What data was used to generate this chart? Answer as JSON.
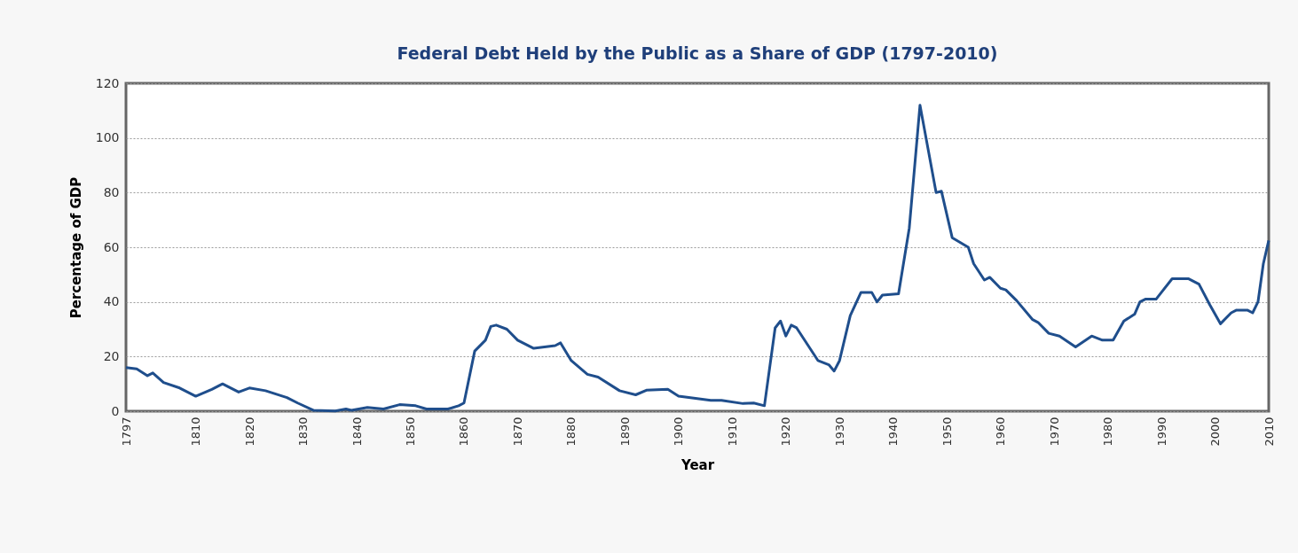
{
  "chart_data": {
    "type": "line",
    "title": "Federal Debt Held by the Public as a Share of GDP (1797-2010)",
    "xlabel": "Year",
    "ylabel": "Percentage of GDP",
    "xlim": [
      1797,
      2010
    ],
    "xticks": [
      1797,
      1810,
      1820,
      1830,
      1840,
      1850,
      1860,
      1870,
      1880,
      1890,
      1900,
      1910,
      1920,
      1930,
      1940,
      1950,
      1960,
      1970,
      1980,
      1990,
      2000,
      2010
    ],
    "ylim": [
      0,
      120
    ],
    "yticks": [
      0,
      20,
      40,
      60,
      80,
      100,
      120
    ],
    "grid": "y",
    "legend": false,
    "marker": "none",
    "line_style": "solid",
    "series": [
      {
        "color": "#1f4e8c",
        "x": [
          1797,
          1799,
          1801,
          1802,
          1804,
          1807,
          1810,
          1813,
          1815,
          1818,
          1820,
          1823,
          1827,
          1829,
          1832,
          1836,
          1838,
          1839,
          1842,
          1845,
          1848,
          1851,
          1853,
          1857,
          1859,
          1860,
          1862,
          1864,
          1865,
          1866,
          1868,
          1870,
          1873,
          1877,
          1878,
          1880,
          1883,
          1885,
          1889,
          1892,
          1894,
          1898,
          1900,
          1906,
          1908,
          1912,
          1914,
          1916,
          1918,
          1919,
          1920,
          1921,
          1922,
          1924,
          1926,
          1928,
          1929,
          1930,
          1932,
          1934,
          1936,
          1937,
          1938,
          1941,
          1943,
          1945,
          1948,
          1949,
          1951,
          1954,
          1955,
          1957,
          1958,
          1960,
          1961,
          1963,
          1966,
          1967,
          1969,
          1971,
          1974,
          1977,
          1979,
          1981,
          1983,
          1985,
          1986,
          1987,
          1989,
          1990,
          1992,
          1995,
          1997,
          1999,
          2001,
          2003,
          2004,
          2006,
          2007,
          2008,
          2009,
          2010
        ],
        "values": [
          16,
          15.5,
          13,
          14,
          10.5,
          8.5,
          5.5,
          8,
          10,
          7,
          8.5,
          7.5,
          5,
          3,
          0.3,
          0.1,
          0.8,
          0.3,
          1.4,
          0.8,
          2.4,
          2,
          0.8,
          0.8,
          2,
          3,
          22,
          26,
          31,
          31.5,
          30,
          26,
          23,
          24,
          25,
          18.5,
          13.5,
          12.5,
          7.5,
          6,
          7.7,
          8,
          5.5,
          4,
          4,
          2.8,
          3,
          2,
          30.5,
          33,
          27.5,
          31.5,
          30.5,
          24.5,
          18.5,
          17,
          14.7,
          18.5,
          35,
          43.5,
          43.5,
          40,
          42.5,
          43,
          67,
          112,
          80,
          80.5,
          63.5,
          60,
          54,
          48,
          49,
          45,
          44.4,
          40.5,
          33.5,
          32.5,
          28.5,
          27.5,
          23.5,
          27.5,
          26,
          26,
          33,
          35.5,
          40,
          41,
          41,
          43.5,
          48.5,
          48.5,
          46.5,
          39,
          32,
          36,
          37,
          37,
          36,
          40,
          54,
          62.5
        ]
      }
    ]
  }
}
